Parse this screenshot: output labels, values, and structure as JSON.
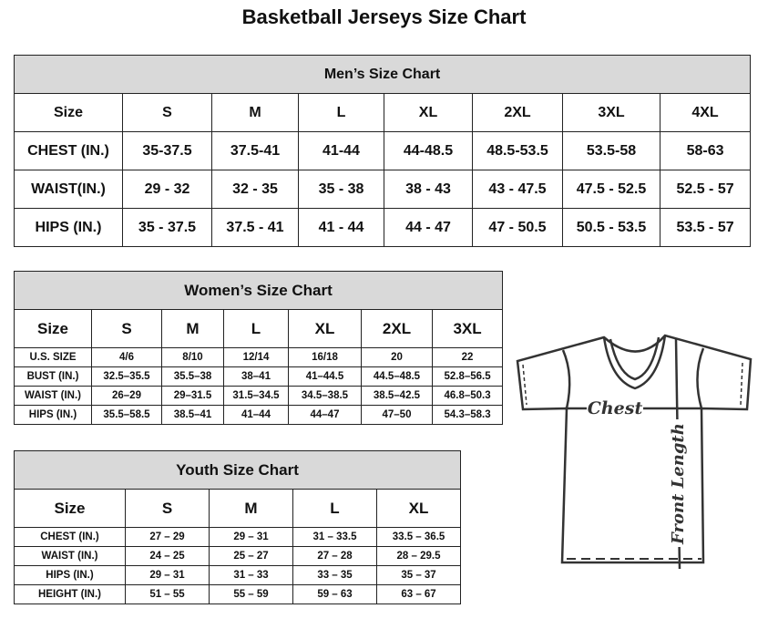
{
  "title": "Basketball Jerseys Size Chart",
  "men": {
    "title": "Men’s Size Chart",
    "header": [
      "Size",
      "S",
      "M",
      "L",
      "XL",
      "2XL",
      "3XL",
      "4XL"
    ],
    "rows": [
      [
        "CHEST (IN.)",
        "35-37.5",
        "37.5-41",
        "41-44",
        "44-48.5",
        "48.5-53.5",
        "53.5-58",
        "58-63"
      ],
      [
        "WAIST(IN.)",
        "29 - 32",
        "32 - 35",
        "35 - 38",
        "38 - 43",
        "43 - 47.5",
        "47.5 - 52.5",
        "52.5 - 57"
      ],
      [
        "HIPS (IN.)",
        "35 - 37.5",
        "37.5 - 41",
        "41 - 44",
        "44 - 47",
        "47 - 50.5",
        "50.5 - 53.5",
        "53.5 - 57"
      ]
    ]
  },
  "women": {
    "title": "Women’s Size Chart",
    "header": [
      "Size",
      "S",
      "M",
      "L",
      "XL",
      "2XL",
      "3XL"
    ],
    "rows": [
      [
        "U.S.  SIZE",
        "4/6",
        "8/10",
        "12/14",
        "16/18",
        "20",
        "22"
      ],
      [
        "BUST  (IN.)",
        "32.5–35.5",
        "35.5–38",
        "38–41",
        "41–44.5",
        "44.5–48.5",
        "52.8–56.5"
      ],
      [
        "WAIST  (IN.)",
        "26–29",
        "29–31.5",
        "31.5–34.5",
        "34.5–38.5",
        "38.5–42.5",
        "46.8–50.3"
      ],
      [
        "HIPS  (IN.)",
        "35.5–58.5",
        "38.5–41",
        "41–44",
        "44–47",
        "47–50",
        "54.3–58.3"
      ]
    ]
  },
  "youth": {
    "title": "Youth Size Chart",
    "header": [
      "Size",
      "S",
      "M",
      "L",
      "XL"
    ],
    "rows": [
      [
        "CHEST  (IN.)",
        "27  –  29",
        "29  –  31",
        "31  –  33.5",
        "33.5  –  36.5"
      ],
      [
        "WAIST  (IN.)",
        "24  –  25",
        "25  –  27",
        "27  –  28",
        "28  –  29.5"
      ],
      [
        "HIPS  (IN.)",
        "29  –  31",
        "31  –  33",
        "33  –  35",
        "35  –  37"
      ],
      [
        "HEIGHT  (IN.)",
        "51  –  55",
        "55  –  59",
        "59  –  63",
        "63  –  67"
      ]
    ]
  },
  "diagram": {
    "chest_label": "Chest",
    "length_label": "Front Length"
  }
}
